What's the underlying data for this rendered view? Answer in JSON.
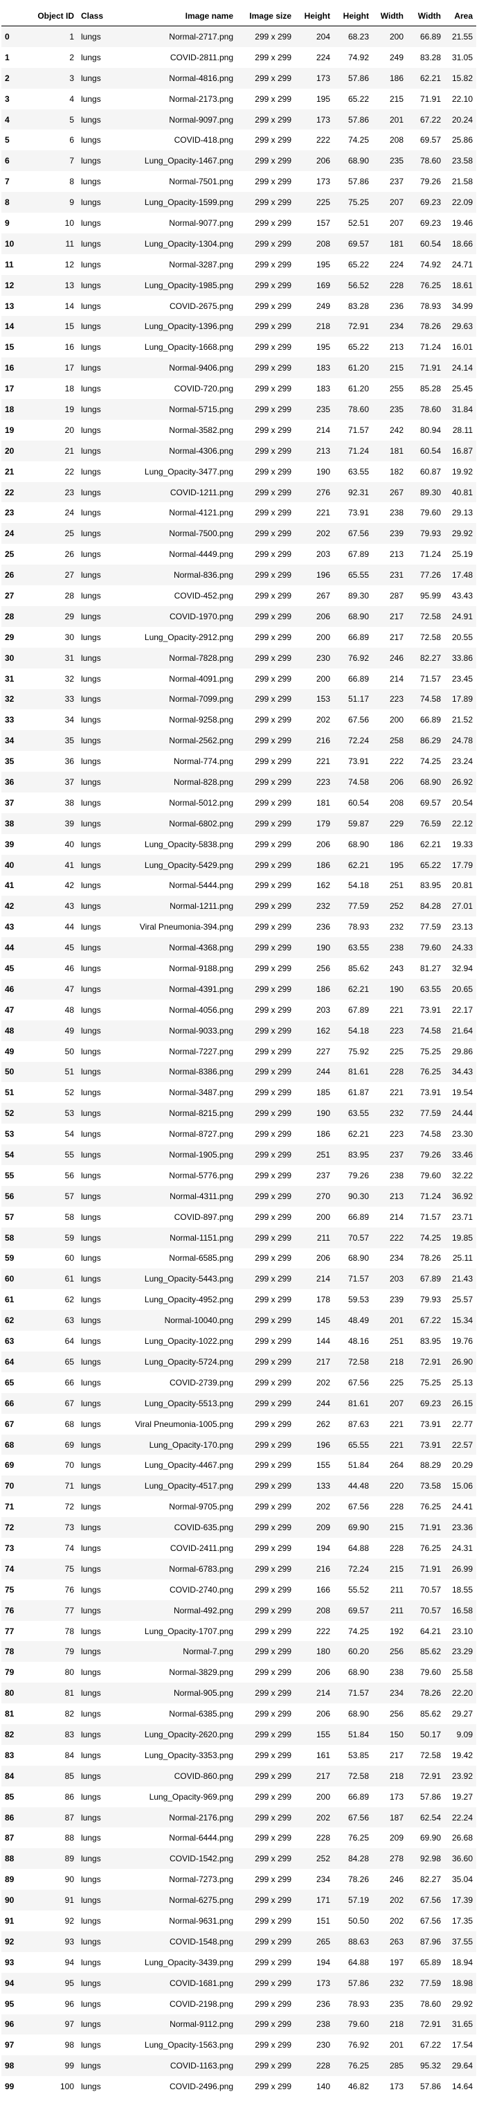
{
  "columns": [
    "",
    "Object ID",
    "Class",
    "Image name",
    "Image size",
    "Height",
    "Height",
    "Width",
    "Width",
    "Area"
  ],
  "rows": [
    [
      "0",
      "1",
      "lungs",
      "Normal-2717.png",
      "299 x 299",
      "204",
      "68.23",
      "200",
      "66.89",
      "21.55"
    ],
    [
      "1",
      "2",
      "lungs",
      "COVID-2811.png",
      "299 x 299",
      "224",
      "74.92",
      "249",
      "83.28",
      "31.05"
    ],
    [
      "2",
      "3",
      "lungs",
      "Normal-4816.png",
      "299 x 299",
      "173",
      "57.86",
      "186",
      "62.21",
      "15.82"
    ],
    [
      "3",
      "4",
      "lungs",
      "Normal-2173.png",
      "299 x 299",
      "195",
      "65.22",
      "215",
      "71.91",
      "22.10"
    ],
    [
      "4",
      "5",
      "lungs",
      "Normal-9097.png",
      "299 x 299",
      "173",
      "57.86",
      "201",
      "67.22",
      "20.24"
    ],
    [
      "5",
      "6",
      "lungs",
      "COVID-418.png",
      "299 x 299",
      "222",
      "74.25",
      "208",
      "69.57",
      "25.86"
    ],
    [
      "6",
      "7",
      "lungs",
      "Lung_Opacity-1467.png",
      "299 x 299",
      "206",
      "68.90",
      "235",
      "78.60",
      "23.58"
    ],
    [
      "7",
      "8",
      "lungs",
      "Normal-7501.png",
      "299 x 299",
      "173",
      "57.86",
      "237",
      "79.26",
      "21.58"
    ],
    [
      "8",
      "9",
      "lungs",
      "Lung_Opacity-1599.png",
      "299 x 299",
      "225",
      "75.25",
      "207",
      "69.23",
      "22.09"
    ],
    [
      "9",
      "10",
      "lungs",
      "Normal-9077.png",
      "299 x 299",
      "157",
      "52.51",
      "207",
      "69.23",
      "19.46"
    ],
    [
      "10",
      "11",
      "lungs",
      "Lung_Opacity-1304.png",
      "299 x 299",
      "208",
      "69.57",
      "181",
      "60.54",
      "18.66"
    ],
    [
      "11",
      "12",
      "lungs",
      "Normal-3287.png",
      "299 x 299",
      "195",
      "65.22",
      "224",
      "74.92",
      "24.71"
    ],
    [
      "12",
      "13",
      "lungs",
      "Lung_Opacity-1985.png",
      "299 x 299",
      "169",
      "56.52",
      "228",
      "76.25",
      "18.61"
    ],
    [
      "13",
      "14",
      "lungs",
      "COVID-2675.png",
      "299 x 299",
      "249",
      "83.28",
      "236",
      "78.93",
      "34.99"
    ],
    [
      "14",
      "15",
      "lungs",
      "Lung_Opacity-1396.png",
      "299 x 299",
      "218",
      "72.91",
      "234",
      "78.26",
      "29.63"
    ],
    [
      "15",
      "16",
      "lungs",
      "Lung_Opacity-1668.png",
      "299 x 299",
      "195",
      "65.22",
      "213",
      "71.24",
      "16.01"
    ],
    [
      "16",
      "17",
      "lungs",
      "Normal-9406.png",
      "299 x 299",
      "183",
      "61.20",
      "215",
      "71.91",
      "24.14"
    ],
    [
      "17",
      "18",
      "lungs",
      "COVID-720.png",
      "299 x 299",
      "183",
      "61.20",
      "255",
      "85.28",
      "25.45"
    ],
    [
      "18",
      "19",
      "lungs",
      "Normal-5715.png",
      "299 x 299",
      "235",
      "78.60",
      "235",
      "78.60",
      "31.84"
    ],
    [
      "19",
      "20",
      "lungs",
      "Normal-3582.png",
      "299 x 299",
      "214",
      "71.57",
      "242",
      "80.94",
      "28.11"
    ],
    [
      "20",
      "21",
      "lungs",
      "Normal-4306.png",
      "299 x 299",
      "213",
      "71.24",
      "181",
      "60.54",
      "16.87"
    ],
    [
      "21",
      "22",
      "lungs",
      "Lung_Opacity-3477.png",
      "299 x 299",
      "190",
      "63.55",
      "182",
      "60.87",
      "19.92"
    ],
    [
      "22",
      "23",
      "lungs",
      "COVID-1211.png",
      "299 x 299",
      "276",
      "92.31",
      "267",
      "89.30",
      "40.81"
    ],
    [
      "23",
      "24",
      "lungs",
      "Normal-4121.png",
      "299 x 299",
      "221",
      "73.91",
      "238",
      "79.60",
      "29.13"
    ],
    [
      "24",
      "25",
      "lungs",
      "Normal-7500.png",
      "299 x 299",
      "202",
      "67.56",
      "239",
      "79.93",
      "29.92"
    ],
    [
      "25",
      "26",
      "lungs",
      "Normal-4449.png",
      "299 x 299",
      "203",
      "67.89",
      "213",
      "71.24",
      "25.19"
    ],
    [
      "26",
      "27",
      "lungs",
      "Normal-836.png",
      "299 x 299",
      "196",
      "65.55",
      "231",
      "77.26",
      "17.48"
    ],
    [
      "27",
      "28",
      "lungs",
      "COVID-452.png",
      "299 x 299",
      "267",
      "89.30",
      "287",
      "95.99",
      "43.43"
    ],
    [
      "28",
      "29",
      "lungs",
      "COVID-1970.png",
      "299 x 299",
      "206",
      "68.90",
      "217",
      "72.58",
      "24.91"
    ],
    [
      "29",
      "30",
      "lungs",
      "Lung_Opacity-2912.png",
      "299 x 299",
      "200",
      "66.89",
      "217",
      "72.58",
      "20.55"
    ],
    [
      "30",
      "31",
      "lungs",
      "Normal-7828.png",
      "299 x 299",
      "230",
      "76.92",
      "246",
      "82.27",
      "33.86"
    ],
    [
      "31",
      "32",
      "lungs",
      "Normal-4091.png",
      "299 x 299",
      "200",
      "66.89",
      "214",
      "71.57",
      "23.45"
    ],
    [
      "32",
      "33",
      "lungs",
      "Normal-7099.png",
      "299 x 299",
      "153",
      "51.17",
      "223",
      "74.58",
      "17.89"
    ],
    [
      "33",
      "34",
      "lungs",
      "Normal-9258.png",
      "299 x 299",
      "202",
      "67.56",
      "200",
      "66.89",
      "21.52"
    ],
    [
      "34",
      "35",
      "lungs",
      "Normal-2562.png",
      "299 x 299",
      "216",
      "72.24",
      "258",
      "86.29",
      "24.78"
    ],
    [
      "35",
      "36",
      "lungs",
      "Normal-774.png",
      "299 x 299",
      "221",
      "73.91",
      "222",
      "74.25",
      "23.24"
    ],
    [
      "36",
      "37",
      "lungs",
      "Normal-828.png",
      "299 x 299",
      "223",
      "74.58",
      "206",
      "68.90",
      "26.92"
    ],
    [
      "37",
      "38",
      "lungs",
      "Normal-5012.png",
      "299 x 299",
      "181",
      "60.54",
      "208",
      "69.57",
      "20.54"
    ],
    [
      "38",
      "39",
      "lungs",
      "Normal-6802.png",
      "299 x 299",
      "179",
      "59.87",
      "229",
      "76.59",
      "22.12"
    ],
    [
      "39",
      "40",
      "lungs",
      "Lung_Opacity-5838.png",
      "299 x 299",
      "206",
      "68.90",
      "186",
      "62.21",
      "19.33"
    ],
    [
      "40",
      "41",
      "lungs",
      "Lung_Opacity-5429.png",
      "299 x 299",
      "186",
      "62.21",
      "195",
      "65.22",
      "17.79"
    ],
    [
      "41",
      "42",
      "lungs",
      "Normal-5444.png",
      "299 x 299",
      "162",
      "54.18",
      "251",
      "83.95",
      "20.81"
    ],
    [
      "42",
      "43",
      "lungs",
      "Normal-1211.png",
      "299 x 299",
      "232",
      "77.59",
      "252",
      "84.28",
      "27.01"
    ],
    [
      "43",
      "44",
      "lungs",
      "Viral Pneumonia-394.png",
      "299 x 299",
      "236",
      "78.93",
      "232",
      "77.59",
      "23.13"
    ],
    [
      "44",
      "45",
      "lungs",
      "Normal-4368.png",
      "299 x 299",
      "190",
      "63.55",
      "238",
      "79.60",
      "24.33"
    ],
    [
      "45",
      "46",
      "lungs",
      "Normal-9188.png",
      "299 x 299",
      "256",
      "85.62",
      "243",
      "81.27",
      "32.94"
    ],
    [
      "46",
      "47",
      "lungs",
      "Normal-4391.png",
      "299 x 299",
      "186",
      "62.21",
      "190",
      "63.55",
      "20.65"
    ],
    [
      "47",
      "48",
      "lungs",
      "Normal-4056.png",
      "299 x 299",
      "203",
      "67.89",
      "221",
      "73.91",
      "22.17"
    ],
    [
      "48",
      "49",
      "lungs",
      "Normal-9033.png",
      "299 x 299",
      "162",
      "54.18",
      "223",
      "74.58",
      "21.64"
    ],
    [
      "49",
      "50",
      "lungs",
      "Normal-7227.png",
      "299 x 299",
      "227",
      "75.92",
      "225",
      "75.25",
      "29.86"
    ],
    [
      "50",
      "51",
      "lungs",
      "Normal-8386.png",
      "299 x 299",
      "244",
      "81.61",
      "228",
      "76.25",
      "34.43"
    ],
    [
      "51",
      "52",
      "lungs",
      "Normal-3487.png",
      "299 x 299",
      "185",
      "61.87",
      "221",
      "73.91",
      "19.54"
    ],
    [
      "52",
      "53",
      "lungs",
      "Normal-8215.png",
      "299 x 299",
      "190",
      "63.55",
      "232",
      "77.59",
      "24.44"
    ],
    [
      "53",
      "54",
      "lungs",
      "Normal-8727.png",
      "299 x 299",
      "186",
      "62.21",
      "223",
      "74.58",
      "23.30"
    ],
    [
      "54",
      "55",
      "lungs",
      "Normal-1905.png",
      "299 x 299",
      "251",
      "83.95",
      "237",
      "79.26",
      "33.46"
    ],
    [
      "55",
      "56",
      "lungs",
      "Normal-5776.png",
      "299 x 299",
      "237",
      "79.26",
      "238",
      "79.60",
      "32.22"
    ],
    [
      "56",
      "57",
      "lungs",
      "Normal-4311.png",
      "299 x 299",
      "270",
      "90.30",
      "213",
      "71.24",
      "36.92"
    ],
    [
      "57",
      "58",
      "lungs",
      "COVID-897.png",
      "299 x 299",
      "200",
      "66.89",
      "214",
      "71.57",
      "23.71"
    ],
    [
      "58",
      "59",
      "lungs",
      "Normal-1151.png",
      "299 x 299",
      "211",
      "70.57",
      "222",
      "74.25",
      "19.85"
    ],
    [
      "59",
      "60",
      "lungs",
      "Normal-6585.png",
      "299 x 299",
      "206",
      "68.90",
      "234",
      "78.26",
      "25.11"
    ],
    [
      "60",
      "61",
      "lungs",
      "Lung_Opacity-5443.png",
      "299 x 299",
      "214",
      "71.57",
      "203",
      "67.89",
      "21.43"
    ],
    [
      "61",
      "62",
      "lungs",
      "Lung_Opacity-4952.png",
      "299 x 299",
      "178",
      "59.53",
      "239",
      "79.93",
      "25.57"
    ],
    [
      "62",
      "63",
      "lungs",
      "Normal-10040.png",
      "299 x 299",
      "145",
      "48.49",
      "201",
      "67.22",
      "15.34"
    ],
    [
      "63",
      "64",
      "lungs",
      "Lung_Opacity-1022.png",
      "299 x 299",
      "144",
      "48.16",
      "251",
      "83.95",
      "19.76"
    ],
    [
      "64",
      "65",
      "lungs",
      "Lung_Opacity-5724.png",
      "299 x 299",
      "217",
      "72.58",
      "218",
      "72.91",
      "26.90"
    ],
    [
      "65",
      "66",
      "lungs",
      "COVID-2739.png",
      "299 x 299",
      "202",
      "67.56",
      "225",
      "75.25",
      "25.13"
    ],
    [
      "66",
      "67",
      "lungs",
      "Lung_Opacity-5513.png",
      "299 x 299",
      "244",
      "81.61",
      "207",
      "69.23",
      "26.15"
    ],
    [
      "67",
      "68",
      "lungs",
      "Viral Pneumonia-1005.png",
      "299 x 299",
      "262",
      "87.63",
      "221",
      "73.91",
      "22.77"
    ],
    [
      "68",
      "69",
      "lungs",
      "Lung_Opacity-170.png",
      "299 x 299",
      "196",
      "65.55",
      "221",
      "73.91",
      "22.57"
    ],
    [
      "69",
      "70",
      "lungs",
      "Lung_Opacity-4467.png",
      "299 x 299",
      "155",
      "51.84",
      "264",
      "88.29",
      "20.29"
    ],
    [
      "70",
      "71",
      "lungs",
      "Lung_Opacity-4517.png",
      "299 x 299",
      "133",
      "44.48",
      "220",
      "73.58",
      "15.06"
    ],
    [
      "71",
      "72",
      "lungs",
      "Normal-9705.png",
      "299 x 299",
      "202",
      "67.56",
      "228",
      "76.25",
      "24.41"
    ],
    [
      "72",
      "73",
      "lungs",
      "COVID-635.png",
      "299 x 299",
      "209",
      "69.90",
      "215",
      "71.91",
      "23.36"
    ],
    [
      "73",
      "74",
      "lungs",
      "COVID-2411.png",
      "299 x 299",
      "194",
      "64.88",
      "228",
      "76.25",
      "24.31"
    ],
    [
      "74",
      "75",
      "lungs",
      "Normal-6783.png",
      "299 x 299",
      "216",
      "72.24",
      "215",
      "71.91",
      "26.99"
    ],
    [
      "75",
      "76",
      "lungs",
      "COVID-2740.png",
      "299 x 299",
      "166",
      "55.52",
      "211",
      "70.57",
      "18.55"
    ],
    [
      "76",
      "77",
      "lungs",
      "Normal-492.png",
      "299 x 299",
      "208",
      "69.57",
      "211",
      "70.57",
      "16.58"
    ],
    [
      "77",
      "78",
      "lungs",
      "Lung_Opacity-1707.png",
      "299 x 299",
      "222",
      "74.25",
      "192",
      "64.21",
      "23.10"
    ],
    [
      "78",
      "79",
      "lungs",
      "Normal-7.png",
      "299 x 299",
      "180",
      "60.20",
      "256",
      "85.62",
      "23.29"
    ],
    [
      "79",
      "80",
      "lungs",
      "Normal-3829.png",
      "299 x 299",
      "206",
      "68.90",
      "238",
      "79.60",
      "25.58"
    ],
    [
      "80",
      "81",
      "lungs",
      "Normal-905.png",
      "299 x 299",
      "214",
      "71.57",
      "234",
      "78.26",
      "22.20"
    ],
    [
      "81",
      "82",
      "lungs",
      "Normal-6385.png",
      "299 x 299",
      "206",
      "68.90",
      "256",
      "85.62",
      "29.27"
    ],
    [
      "82",
      "83",
      "lungs",
      "Lung_Opacity-2620.png",
      "299 x 299",
      "155",
      "51.84",
      "150",
      "50.17",
      "9.09"
    ],
    [
      "83",
      "84",
      "lungs",
      "Lung_Opacity-3353.png",
      "299 x 299",
      "161",
      "53.85",
      "217",
      "72.58",
      "19.42"
    ],
    [
      "84",
      "85",
      "lungs",
      "COVID-860.png",
      "299 x 299",
      "217",
      "72.58",
      "218",
      "72.91",
      "23.92"
    ],
    [
      "85",
      "86",
      "lungs",
      "Lung_Opacity-969.png",
      "299 x 299",
      "200",
      "66.89",
      "173",
      "57.86",
      "19.27"
    ],
    [
      "86",
      "87",
      "lungs",
      "Normal-2176.png",
      "299 x 299",
      "202",
      "67.56",
      "187",
      "62.54",
      "22.24"
    ],
    [
      "87",
      "88",
      "lungs",
      "Normal-6444.png",
      "299 x 299",
      "228",
      "76.25",
      "209",
      "69.90",
      "26.68"
    ],
    [
      "88",
      "89",
      "lungs",
      "COVID-1542.png",
      "299 x 299",
      "252",
      "84.28",
      "278",
      "92.98",
      "36.60"
    ],
    [
      "89",
      "90",
      "lungs",
      "Normal-7273.png",
      "299 x 299",
      "234",
      "78.26",
      "246",
      "82.27",
      "35.04"
    ],
    [
      "90",
      "91",
      "lungs",
      "Normal-6275.png",
      "299 x 299",
      "171",
      "57.19",
      "202",
      "67.56",
      "17.39"
    ],
    [
      "91",
      "92",
      "lungs",
      "Normal-9631.png",
      "299 x 299",
      "151",
      "50.50",
      "202",
      "67.56",
      "17.35"
    ],
    [
      "92",
      "93",
      "lungs",
      "COVID-1548.png",
      "299 x 299",
      "265",
      "88.63",
      "263",
      "87.96",
      "37.55"
    ],
    [
      "93",
      "94",
      "lungs",
      "Lung_Opacity-3439.png",
      "299 x 299",
      "194",
      "64.88",
      "197",
      "65.89",
      "18.94"
    ],
    [
      "94",
      "95",
      "lungs",
      "COVID-1681.png",
      "299 x 299",
      "173",
      "57.86",
      "232",
      "77.59",
      "18.98"
    ],
    [
      "95",
      "96",
      "lungs",
      "COVID-2198.png",
      "299 x 299",
      "236",
      "78.93",
      "235",
      "78.60",
      "29.92"
    ],
    [
      "96",
      "97",
      "lungs",
      "Normal-9112.png",
      "299 x 299",
      "238",
      "79.60",
      "218",
      "72.91",
      "31.65"
    ],
    [
      "97",
      "98",
      "lungs",
      "Lung_Opacity-1563.png",
      "299 x 299",
      "230",
      "76.92",
      "201",
      "67.22",
      "17.54"
    ],
    [
      "98",
      "99",
      "lungs",
      "COVID-1163.png",
      "299 x 299",
      "228",
      "76.25",
      "285",
      "95.32",
      "29.64"
    ],
    [
      "99",
      "100",
      "lungs",
      "COVID-2496.png",
      "299 x 299",
      "140",
      "46.82",
      "173",
      "57.86",
      "14.64"
    ]
  ]
}
